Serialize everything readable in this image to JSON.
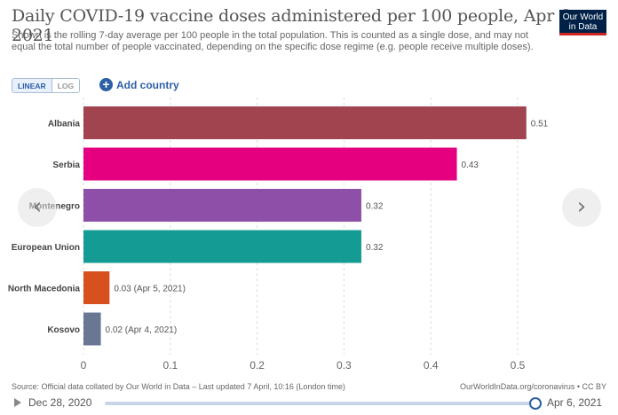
{
  "title": "Daily COVID-19 vaccine doses administered per 100 people, Apr 6, 2021",
  "subtitle": "Shown is the rolling 7-day average per 100 people in the total population. This is counted as a single dose, and may not equal the total number of people vaccinated, depending on the specific dose regime (e.g. people receive multiple doses).",
  "logo": {
    "line1": "Our World",
    "line2": "in Data"
  },
  "controls": {
    "linear_label": "LINEAR",
    "log_label": "LOG",
    "add_country_label": "Add country",
    "add_icon": "plus-circle-icon"
  },
  "nav": {
    "prev_icon": "chevron-left-icon",
    "next_icon": "chevron-right-icon"
  },
  "footer": {
    "source": "Source: Official data collated by Our World in Data – Last updated 7 April, 10:16 (London time)",
    "credit": "OurWorldInData.org/coronavirus • CC BY"
  },
  "timeline": {
    "start": "Dec 28, 2020",
    "end": "Apr 6, 2021",
    "position": 1.0
  },
  "chart_data": {
    "type": "bar",
    "orientation": "horizontal",
    "categories": [
      "Albania",
      "Serbia",
      "Montenegro",
      "European Union",
      "North Macedonia",
      "Kosovo"
    ],
    "values": [
      0.51,
      0.43,
      0.32,
      0.32,
      0.03,
      0.02
    ],
    "value_labels": [
      "0.51",
      "0.43",
      "0.32",
      "0.32",
      "0.03 (Apr 5, 2021)",
      "0.02 (Apr 4, 2021)"
    ],
    "colors": [
      "#a2444f",
      "#e5007f",
      "#8e4fa8",
      "#149b93",
      "#d6511e",
      "#6a7793"
    ],
    "xlim": [
      0,
      0.52
    ],
    "xticks": [
      0,
      0.1,
      0.2,
      0.3,
      0.4,
      0.5
    ],
    "xtick_labels": [
      "0",
      "0.1",
      "0.2",
      "0.3",
      "0.4",
      "0.5"
    ],
    "grid": true
  }
}
